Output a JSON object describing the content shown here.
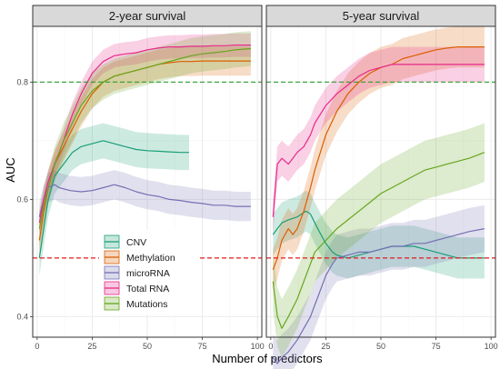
{
  "chart_data": {
    "type": "line",
    "xlabel": "Number of predictors",
    "ylabel": "AUC",
    "xlim": [
      -2,
      102
    ],
    "ylim": [
      0.365,
      0.895
    ],
    "x_ticks": [
      0,
      25,
      50,
      75,
      100
    ],
    "y_ticks": [
      0.4,
      0.6,
      0.8
    ],
    "y_tick_labels": [
      "0.4",
      "0.6",
      "0.8"
    ],
    "grid": true,
    "legend_position": "bottom-center of left panel",
    "reference_lines": [
      {
        "y": 0.8,
        "color": "#2ca02c",
        "style": "dashed"
      },
      {
        "y": 0.5,
        "color": "#e41a1c",
        "style": "dashed"
      }
    ],
    "legend": [
      "CNV",
      "Methylation",
      "microRNA",
      "Total RNA",
      "Mutations"
    ],
    "colors": {
      "CNV": "#1b9e77",
      "Methylation": "#d95f02",
      "microRNA": "#7570b3",
      "Total RNA": "#e7298a",
      "Mutations": "#66a61e"
    },
    "panels": [
      {
        "title": "2-year survival",
        "series": [
          {
            "name": "CNV",
            "band": 0.03,
            "points": [
              [
                1,
                0.5
              ],
              [
                3,
                0.55
              ],
              [
                5,
                0.6
              ],
              [
                8,
                0.64
              ],
              [
                12,
                0.66
              ],
              [
                16,
                0.68
              ],
              [
                20,
                0.69
              ],
              [
                25,
                0.695
              ],
              [
                30,
                0.7
              ],
              [
                35,
                0.695
              ],
              [
                40,
                0.69
              ],
              [
                45,
                0.685
              ],
              [
                50,
                0.683
              ],
              [
                55,
                0.682
              ],
              [
                60,
                0.681
              ],
              [
                65,
                0.68
              ],
              [
                69,
                0.68
              ]
            ]
          },
          {
            "name": "Methylation",
            "band": 0.025,
            "points": [
              [
                1,
                0.53
              ],
              [
                3,
                0.58
              ],
              [
                5,
                0.62
              ],
              [
                8,
                0.66
              ],
              [
                12,
                0.69
              ],
              [
                16,
                0.72
              ],
              [
                20,
                0.75
              ],
              [
                25,
                0.78
              ],
              [
                30,
                0.8
              ],
              [
                35,
                0.81
              ],
              [
                40,
                0.815
              ],
              [
                45,
                0.82
              ],
              [
                50,
                0.825
              ],
              [
                55,
                0.83
              ],
              [
                60,
                0.833
              ],
              [
                65,
                0.835
              ],
              [
                70,
                0.835
              ],
              [
                75,
                0.836
              ],
              [
                80,
                0.836
              ],
              [
                85,
                0.836
              ],
              [
                90,
                0.836
              ],
              [
                97,
                0.836
              ]
            ]
          },
          {
            "name": "microRNA",
            "band": 0.025,
            "points": [
              [
                1,
                0.57
              ],
              [
                3,
                0.6
              ],
              [
                5,
                0.62
              ],
              [
                8,
                0.625
              ],
              [
                10,
                0.62
              ],
              [
                15,
                0.615
              ],
              [
                20,
                0.613
              ],
              [
                25,
                0.615
              ],
              [
                30,
                0.62
              ],
              [
                35,
                0.625
              ],
              [
                40,
                0.62
              ],
              [
                45,
                0.613
              ],
              [
                50,
                0.608
              ],
              [
                55,
                0.605
              ],
              [
                60,
                0.6
              ],
              [
                65,
                0.598
              ],
              [
                70,
                0.595
              ],
              [
                75,
                0.593
              ],
              [
                80,
                0.59
              ],
              [
                85,
                0.59
              ],
              [
                90,
                0.588
              ],
              [
                97,
                0.588
              ]
            ]
          },
          {
            "name": "Total RNA",
            "band": 0.02,
            "points": [
              [
                1,
                0.56
              ],
              [
                3,
                0.6
              ],
              [
                5,
                0.63
              ],
              [
                8,
                0.66
              ],
              [
                12,
                0.7
              ],
              [
                16,
                0.745
              ],
              [
                20,
                0.78
              ],
              [
                25,
                0.815
              ],
              [
                30,
                0.835
              ],
              [
                35,
                0.845
              ],
              [
                40,
                0.848
              ],
              [
                45,
                0.85
              ],
              [
                50,
                0.855
              ],
              [
                55,
                0.858
              ],
              [
                60,
                0.86
              ],
              [
                65,
                0.86
              ],
              [
                70,
                0.861
              ],
              [
                75,
                0.861
              ],
              [
                80,
                0.862
              ],
              [
                85,
                0.862
              ],
              [
                90,
                0.863
              ],
              [
                97,
                0.863
              ]
            ]
          },
          {
            "name": "Mutations",
            "band": 0.03,
            "points": [
              [
                1,
                0.55
              ],
              [
                3,
                0.59
              ],
              [
                5,
                0.62
              ],
              [
                8,
                0.66
              ],
              [
                12,
                0.7
              ],
              [
                16,
                0.73
              ],
              [
                20,
                0.76
              ],
              [
                25,
                0.785
              ],
              [
                30,
                0.8
              ],
              [
                35,
                0.81
              ],
              [
                40,
                0.815
              ],
              [
                45,
                0.82
              ],
              [
                50,
                0.825
              ],
              [
                55,
                0.83
              ],
              [
                60,
                0.835
              ],
              [
                65,
                0.84
              ],
              [
                70,
                0.845
              ],
              [
                75,
                0.848
              ],
              [
                80,
                0.85
              ],
              [
                85,
                0.852
              ],
              [
                90,
                0.855
              ],
              [
                97,
                0.857
              ]
            ]
          }
        ]
      },
      {
        "title": "5-year survival",
        "series": [
          {
            "name": "CNV",
            "band": 0.035,
            "points": [
              [
                1,
                0.54
              ],
              [
                3,
                0.55
              ],
              [
                5,
                0.56
              ],
              [
                8,
                0.565
              ],
              [
                12,
                0.57
              ],
              [
                16,
                0.58
              ],
              [
                18,
                0.575
              ],
              [
                20,
                0.56
              ],
              [
                22,
                0.545
              ],
              [
                25,
                0.525
              ],
              [
                28,
                0.51
              ],
              [
                30,
                0.505
              ],
              [
                35,
                0.5
              ],
              [
                40,
                0.505
              ],
              [
                45,
                0.51
              ],
              [
                50,
                0.515
              ],
              [
                55,
                0.52
              ],
              [
                60,
                0.52
              ],
              [
                65,
                0.52
              ],
              [
                70,
                0.515
              ],
              [
                75,
                0.51
              ],
              [
                80,
                0.505
              ],
              [
                85,
                0.5
              ],
              [
                90,
                0.5
              ],
              [
                97,
                0.5
              ]
            ]
          },
          {
            "name": "Methylation",
            "band": 0.035,
            "points": [
              [
                1,
                0.48
              ],
              [
                3,
                0.5
              ],
              [
                5,
                0.53
              ],
              [
                8,
                0.55
              ],
              [
                10,
                0.54
              ],
              [
                12,
                0.55
              ],
              [
                15,
                0.58
              ],
              [
                18,
                0.62
              ],
              [
                20,
                0.65
              ],
              [
                25,
                0.71
              ],
              [
                30,
                0.75
              ],
              [
                35,
                0.78
              ],
              [
                40,
                0.8
              ],
              [
                45,
                0.815
              ],
              [
                50,
                0.825
              ],
              [
                55,
                0.83
              ],
              [
                60,
                0.84
              ],
              [
                65,
                0.845
              ],
              [
                70,
                0.85
              ],
              [
                75,
                0.855
              ],
              [
                80,
                0.858
              ],
              [
                85,
                0.86
              ],
              [
                90,
                0.86
              ],
              [
                97,
                0.86
              ]
            ]
          },
          {
            "name": "microRNA",
            "band": 0.04,
            "points": [
              [
                1,
                0.33
              ],
              [
                3,
                0.32
              ],
              [
                5,
                0.33
              ],
              [
                8,
                0.34
              ],
              [
                12,
                0.36
              ],
              [
                15,
                0.38
              ],
              [
                18,
                0.4
              ],
              [
                20,
                0.42
              ],
              [
                22,
                0.44
              ],
              [
                25,
                0.47
              ],
              [
                28,
                0.49
              ],
              [
                30,
                0.5
              ],
              [
                35,
                0.505
              ],
              [
                40,
                0.51
              ],
              [
                45,
                0.51
              ],
              [
                50,
                0.515
              ],
              [
                55,
                0.52
              ],
              [
                60,
                0.52
              ],
              [
                65,
                0.525
              ],
              [
                70,
                0.525
              ],
              [
                75,
                0.53
              ],
              [
                80,
                0.535
              ],
              [
                85,
                0.54
              ],
              [
                90,
                0.545
              ],
              [
                97,
                0.55
              ]
            ]
          },
          {
            "name": "Total RNA",
            "band": 0.03,
            "points": [
              [
                1,
                0.57
              ],
              [
                3,
                0.66
              ],
              [
                5,
                0.67
              ],
              [
                8,
                0.66
              ],
              [
                10,
                0.67
              ],
              [
                12,
                0.68
              ],
              [
                15,
                0.69
              ],
              [
                18,
                0.71
              ],
              [
                20,
                0.73
              ],
              [
                25,
                0.76
              ],
              [
                30,
                0.78
              ],
              [
                35,
                0.795
              ],
              [
                40,
                0.81
              ],
              [
                45,
                0.82
              ],
              [
                50,
                0.825
              ],
              [
                55,
                0.83
              ],
              [
                60,
                0.83
              ],
              [
                65,
                0.83
              ],
              [
                70,
                0.83
              ],
              [
                75,
                0.83
              ],
              [
                80,
                0.83
              ],
              [
                85,
                0.83
              ],
              [
                90,
                0.83
              ],
              [
                97,
                0.83
              ]
            ]
          },
          {
            "name": "Mutations",
            "band": 0.05,
            "points": [
              [
                1,
                0.46
              ],
              [
                3,
                0.4
              ],
              [
                5,
                0.38
              ],
              [
                8,
                0.4
              ],
              [
                12,
                0.43
              ],
              [
                15,
                0.46
              ],
              [
                18,
                0.49
              ],
              [
                20,
                0.51
              ],
              [
                25,
                0.53
              ],
              [
                30,
                0.55
              ],
              [
                35,
                0.565
              ],
              [
                40,
                0.58
              ],
              [
                45,
                0.595
              ],
              [
                50,
                0.61
              ],
              [
                55,
                0.62
              ],
              [
                60,
                0.63
              ],
              [
                65,
                0.64
              ],
              [
                70,
                0.65
              ],
              [
                75,
                0.655
              ],
              [
                80,
                0.66
              ],
              [
                85,
                0.665
              ],
              [
                90,
                0.67
              ],
              [
                97,
                0.68
              ]
            ]
          }
        ]
      }
    ]
  }
}
